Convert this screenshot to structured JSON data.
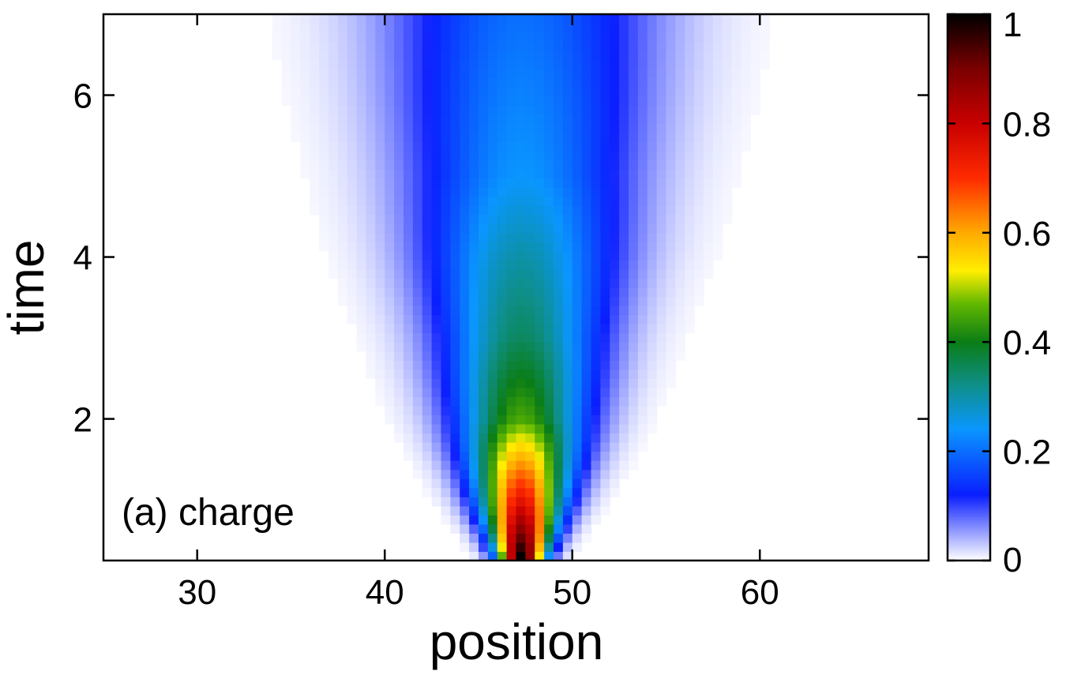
{
  "chart_data": {
    "type": "heatmap",
    "title": "",
    "xlabel": "position",
    "ylabel": "time",
    "annotation": "(a) charge",
    "xlim": [
      25,
      69
    ],
    "ylim": [
      0.25,
      7
    ],
    "xticks": [
      30,
      40,
      50,
      60
    ],
    "xtick_labels": [
      "30",
      "40",
      "50",
      "60"
    ],
    "yticks": [
      2,
      4,
      6
    ],
    "ytick_labels": [
      "2",
      "4",
      "6"
    ],
    "colorbar": {
      "range": [
        0,
        1
      ],
      "ticks": [
        0,
        0.2,
        0.4,
        0.6,
        0.8,
        1
      ],
      "tick_labels": [
        "0",
        "0.2",
        "0.4",
        "0.6",
        "0.8",
        "1"
      ],
      "colormap": [
        [
          0.0,
          "#ffffff"
        ],
        [
          0.12,
          "#0a1eff"
        ],
        [
          0.24,
          "#0a96ff"
        ],
        [
          0.32,
          "#0e8f8a"
        ],
        [
          0.4,
          "#0b7d16"
        ],
        [
          0.47,
          "#62b800"
        ],
        [
          0.53,
          "#ffee00"
        ],
        [
          0.6,
          "#ffaa00"
        ],
        [
          0.7,
          "#ff2a00"
        ],
        [
          0.8,
          "#c80000"
        ],
        [
          0.9,
          "#7a0000"
        ],
        [
          1.0,
          "#000000"
        ]
      ]
    },
    "field": {
      "center_x": 47.3,
      "cells_x": 88,
      "cells_y": 60,
      "description_of_values": "intensity peaked near position 47.3 at early time, spreading and decaying with time",
      "sampled_profile": [
        {
          "time": 0.3,
          "peak": 1.0,
          "half_width": 1.0
        },
        {
          "time": 1.0,
          "peak": 0.75,
          "half_width": 1.8
        },
        {
          "time": 2.0,
          "peak": 0.45,
          "half_width": 2.8
        },
        {
          "time": 3.0,
          "peak": 0.35,
          "half_width": 3.5
        },
        {
          "time": 4.0,
          "peak": 0.3,
          "half_width": 4.2
        },
        {
          "time": 5.0,
          "peak": 0.24,
          "half_width": 4.8
        },
        {
          "time": 6.0,
          "peak": 0.22,
          "half_width": 5.3
        },
        {
          "time": 7.0,
          "peak": 0.2,
          "half_width": 5.7
        }
      ]
    }
  }
}
